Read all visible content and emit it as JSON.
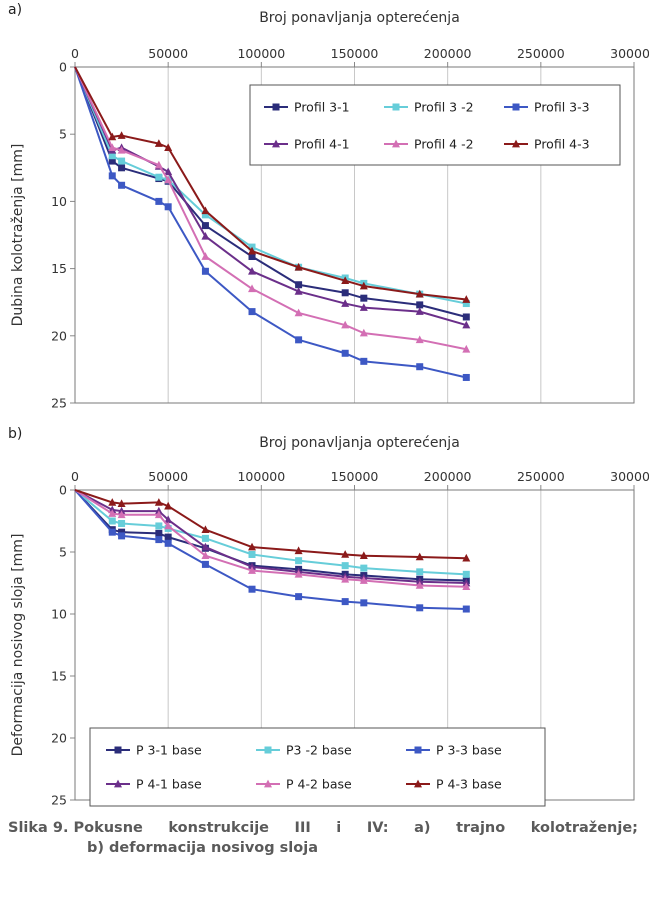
{
  "chart_data": [
    {
      "panel_label": "a)",
      "type": "line",
      "xlabel": "Broj ponavljanja opterećenja",
      "ylabel": "Dubina kolotraženja [mm]",
      "x_ticks": [
        "0",
        "50000",
        "100000",
        "150000",
        "200000",
        "250000",
        "300000"
      ],
      "y_ticks": [
        "0",
        "5",
        "10",
        "15",
        "20",
        "25"
      ],
      "xlim": [
        0,
        300000
      ],
      "ylim": [
        0,
        25
      ],
      "y_inverted": true,
      "x_axis_position": "top",
      "grid": "vertical",
      "legend_position": "top-right",
      "series": [
        {
          "name": "Profil 3-1",
          "color": "#2b2d7a",
          "marker": "square",
          "x": [
            0,
            20000,
            25000,
            45000,
            50000,
            70000,
            95000,
            120000,
            145000,
            155000,
            185000,
            210000
          ],
          "y": [
            0,
            7.0,
            7.5,
            8.3,
            8.5,
            11.8,
            14.1,
            16.2,
            16.8,
            17.2,
            17.7,
            18.6
          ]
        },
        {
          "name": "Profil 3 -2",
          "color": "#66cdd9",
          "marker": "square",
          "x": [
            0,
            20000,
            25000,
            45000,
            50000,
            70000,
            95000,
            120000,
            145000,
            155000,
            185000,
            210000
          ],
          "y": [
            0,
            6.6,
            7.0,
            8.2,
            8.4,
            11.0,
            13.4,
            14.9,
            15.7,
            16.1,
            16.9,
            17.6
          ]
        },
        {
          "name": "Profil  3-3",
          "color": "#3d58c4",
          "marker": "square",
          "x": [
            0,
            20000,
            25000,
            45000,
            50000,
            70000,
            95000,
            120000,
            145000,
            155000,
            185000,
            210000
          ],
          "y": [
            0,
            8.1,
            8.8,
            10.0,
            10.4,
            15.2,
            18.2,
            20.3,
            21.3,
            21.9,
            22.3,
            23.1
          ]
        },
        {
          "name": "Profil 4-1",
          "color": "#6b2f8a",
          "marker": "triangle",
          "x": [
            0,
            20000,
            25000,
            45000,
            50000,
            70000,
            95000,
            120000,
            145000,
            155000,
            185000,
            210000
          ],
          "y": [
            0,
            6.2,
            6.0,
            7.4,
            7.8,
            12.6,
            15.2,
            16.7,
            17.6,
            17.9,
            18.2,
            19.2
          ]
        },
        {
          "name": "Profil 4 -2",
          "color": "#d36fb4",
          "marker": "triangle",
          "x": [
            0,
            20000,
            25000,
            45000,
            50000,
            70000,
            95000,
            120000,
            145000,
            155000,
            185000,
            210000
          ],
          "y": [
            0,
            6.0,
            6.2,
            7.3,
            8.4,
            14.1,
            16.5,
            18.3,
            19.2,
            19.8,
            20.3,
            21.0
          ]
        },
        {
          "name": "Profil  4-3",
          "color": "#8b1a1a",
          "marker": "triangle",
          "x": [
            0,
            20000,
            25000,
            45000,
            50000,
            70000,
            95000,
            120000,
            145000,
            155000,
            185000,
            210000
          ],
          "y": [
            0,
            5.2,
            5.1,
            5.7,
            6.0,
            10.7,
            13.7,
            14.9,
            15.9,
            16.3,
            16.9,
            17.3
          ]
        }
      ]
    },
    {
      "panel_label": "b)",
      "type": "line",
      "xlabel": "Broj ponavljanja opterećenja",
      "ylabel": "Deformacija nosivog sloja  [mm]",
      "x_ticks": [
        "0",
        "50000",
        "100000",
        "150000",
        "200000",
        "250000",
        "300000"
      ],
      "y_ticks": [
        "0",
        "5",
        "10",
        "15",
        "20",
        "25"
      ],
      "xlim": [
        0,
        300000
      ],
      "ylim": [
        0,
        25
      ],
      "y_inverted": true,
      "x_axis_position": "top",
      "grid": "vertical",
      "legend_position": "bottom",
      "series": [
        {
          "name": "P 3-1 base",
          "color": "#2b2d7a",
          "marker": "square",
          "x": [
            0,
            20000,
            25000,
            45000,
            50000,
            70000,
            95000,
            120000,
            145000,
            155000,
            185000,
            210000
          ],
          "y": [
            0,
            3.2,
            3.4,
            3.5,
            3.8,
            4.7,
            6.1,
            6.4,
            6.8,
            6.9,
            7.2,
            7.3
          ]
        },
        {
          "name": "P3 -2 base",
          "color": "#66cdd9",
          "marker": "square",
          "x": [
            0,
            20000,
            25000,
            45000,
            50000,
            70000,
            95000,
            120000,
            145000,
            155000,
            185000,
            210000
          ],
          "y": [
            0,
            2.5,
            2.7,
            2.9,
            3.1,
            3.9,
            5.2,
            5.7,
            6.1,
            6.3,
            6.6,
            6.8
          ]
        },
        {
          "name": "P 3-3 base",
          "color": "#3d58c4",
          "marker": "square",
          "x": [
            0,
            20000,
            25000,
            45000,
            50000,
            70000,
            95000,
            120000,
            145000,
            155000,
            185000,
            210000
          ],
          "y": [
            0,
            3.4,
            3.7,
            4.0,
            4.3,
            6.0,
            8.0,
            8.6,
            9.0,
            9.1,
            9.5,
            9.6
          ]
        },
        {
          "name": "P 4-1 base",
          "color": "#6b2f8a",
          "marker": "triangle",
          "x": [
            0,
            20000,
            25000,
            45000,
            50000,
            70000,
            95000,
            120000,
            145000,
            155000,
            185000,
            210000
          ],
          "y": [
            0,
            1.6,
            1.7,
            1.7,
            2.4,
            4.6,
            6.2,
            6.6,
            7.0,
            7.1,
            7.4,
            7.5
          ]
        },
        {
          "name": "P 4-2 base",
          "color": "#d36fb4",
          "marker": "triangle",
          "x": [
            0,
            20000,
            25000,
            45000,
            50000,
            70000,
            95000,
            120000,
            145000,
            155000,
            185000,
            210000
          ],
          "y": [
            0,
            1.9,
            2.0,
            2.0,
            2.9,
            5.3,
            6.5,
            6.8,
            7.2,
            7.3,
            7.7,
            7.8
          ]
        },
        {
          "name": "P 4-3 base",
          "color": "#8b1a1a",
          "marker": "triangle",
          "x": [
            0,
            20000,
            25000,
            45000,
            50000,
            70000,
            95000,
            120000,
            145000,
            155000,
            185000,
            210000
          ],
          "y": [
            0,
            1.0,
            1.1,
            1.0,
            1.3,
            3.2,
            4.6,
            4.9,
            5.2,
            5.3,
            5.4,
            5.5
          ]
        }
      ]
    }
  ],
  "caption": {
    "line1_words": [
      "Slika 9. Pokusne",
      "konstrukcije",
      "III",
      "i",
      "IV:",
      "a)",
      "trajno",
      "kolotraženje;"
    ],
    "line2": "b) deformacija nosivog sloja"
  }
}
